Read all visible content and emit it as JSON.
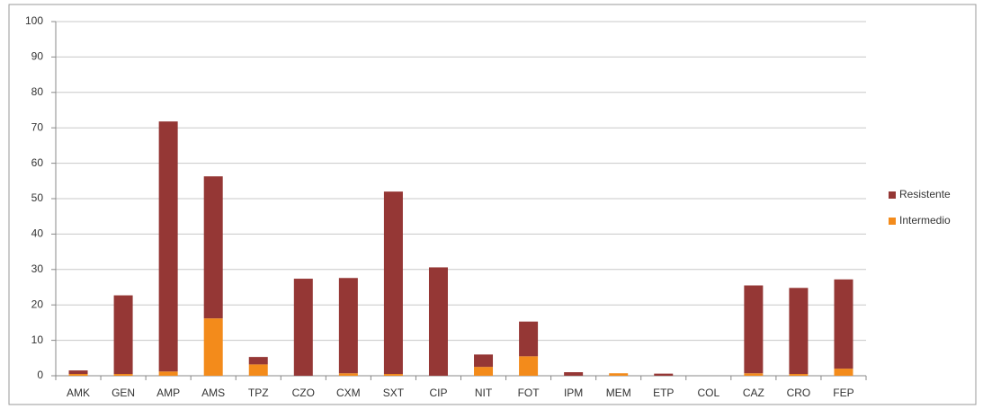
{
  "chart_data": {
    "type": "stacked_bar",
    "categories": [
      "AMK",
      "GEN",
      "AMP",
      "AMS",
      "TPZ",
      "CZO",
      "CXM",
      "SXT",
      "CIP",
      "NIT",
      "FOT",
      "IPM",
      "MEM",
      "ETP",
      "COL",
      "CAZ",
      "CRO",
      "FEP"
    ],
    "series": [
      {
        "name": "Resistente",
        "color": "#953735",
        "values": [
          1.0,
          22.2,
          70.6,
          40.1,
          2.1,
          27.4,
          26.9,
          51.5,
          30.6,
          3.5,
          9.8,
          1.0,
          0,
          0.6,
          0,
          24.8,
          24.3,
          25.2
        ]
      },
      {
        "name": "Intermedio",
        "color": "#f38b1b",
        "values": [
          0.5,
          0.5,
          1.2,
          16.2,
          3.2,
          0,
          0.7,
          0.5,
          0,
          2.5,
          5.5,
          0,
          0.7,
          0,
          0,
          0.7,
          0.5,
          2.0
        ]
      }
    ],
    "ylim": [
      0,
      100
    ],
    "yticks": [
      0,
      10,
      20,
      30,
      40,
      50,
      60,
      70,
      80,
      90,
      100
    ],
    "grid": true,
    "legend_position": "right"
  }
}
